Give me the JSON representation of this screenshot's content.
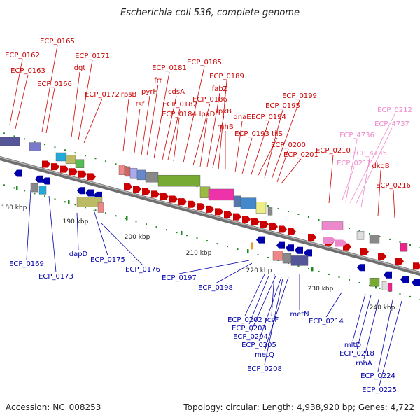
{
  "title": "Escherichia coli 536, complete genome",
  "footer": {
    "accession": "Accession: NC_008253",
    "topology": "Topology: circular; Length: 4,938,920 bp; Genes: 4,722"
  },
  "colors": {
    "forward": "#cc0000",
    "reverse": "#0000aa",
    "rna": "#ee88cc",
    "axis": "#888888",
    "tick": "#228822"
  },
  "scale_labels": [
    "180 kbp",
    "190 kbp",
    "200 kbp",
    "210 kbp",
    "220 kbp",
    "230 kbp",
    "240 kbp"
  ],
  "upper_labels": [
    "ECP_0162",
    "ECP_0163",
    "ECP_0165",
    "ECP_0166",
    "ECP_0171",
    "dgt",
    "ECP_0172",
    "rpsB",
    "tsf",
    "pyrH",
    "frr",
    "ECP_0181",
    "cdsA",
    "ECP_0182",
    "ECP_0184",
    "ECP_0185",
    "ECP_0186",
    "lpxD",
    "fabZ",
    "lpxB",
    "ECP_0189",
    "rnhB",
    "dnaE",
    "ECP_0193",
    "ECP_0194",
    "tilS",
    "ECP_0195",
    "ECP_0199",
    "ECP_0200",
    "ECP_0201",
    "ECP_0210",
    "dkgB",
    "ECP_0216"
  ],
  "rna_labels": [
    "ECP_0212",
    "ECP_4737",
    "ECP_4736",
    "ECP_4735",
    "ECP_0211"
  ],
  "lower_labels": [
    "ECP_0169",
    "ECP_0173",
    "dapD",
    "ECP_0175",
    "ECP_0176",
    "ECP_0197",
    "ECP_0198",
    "ECP_0202",
    "rcsF",
    "ECP_0203",
    "ECP_0204",
    "ECP_0205",
    "metQ",
    "ECP_0208",
    "metN",
    "ECP_0214",
    "mltD",
    "ECP_0218",
    "rnhA",
    "ECP_0224",
    "ECP_0225"
  ]
}
